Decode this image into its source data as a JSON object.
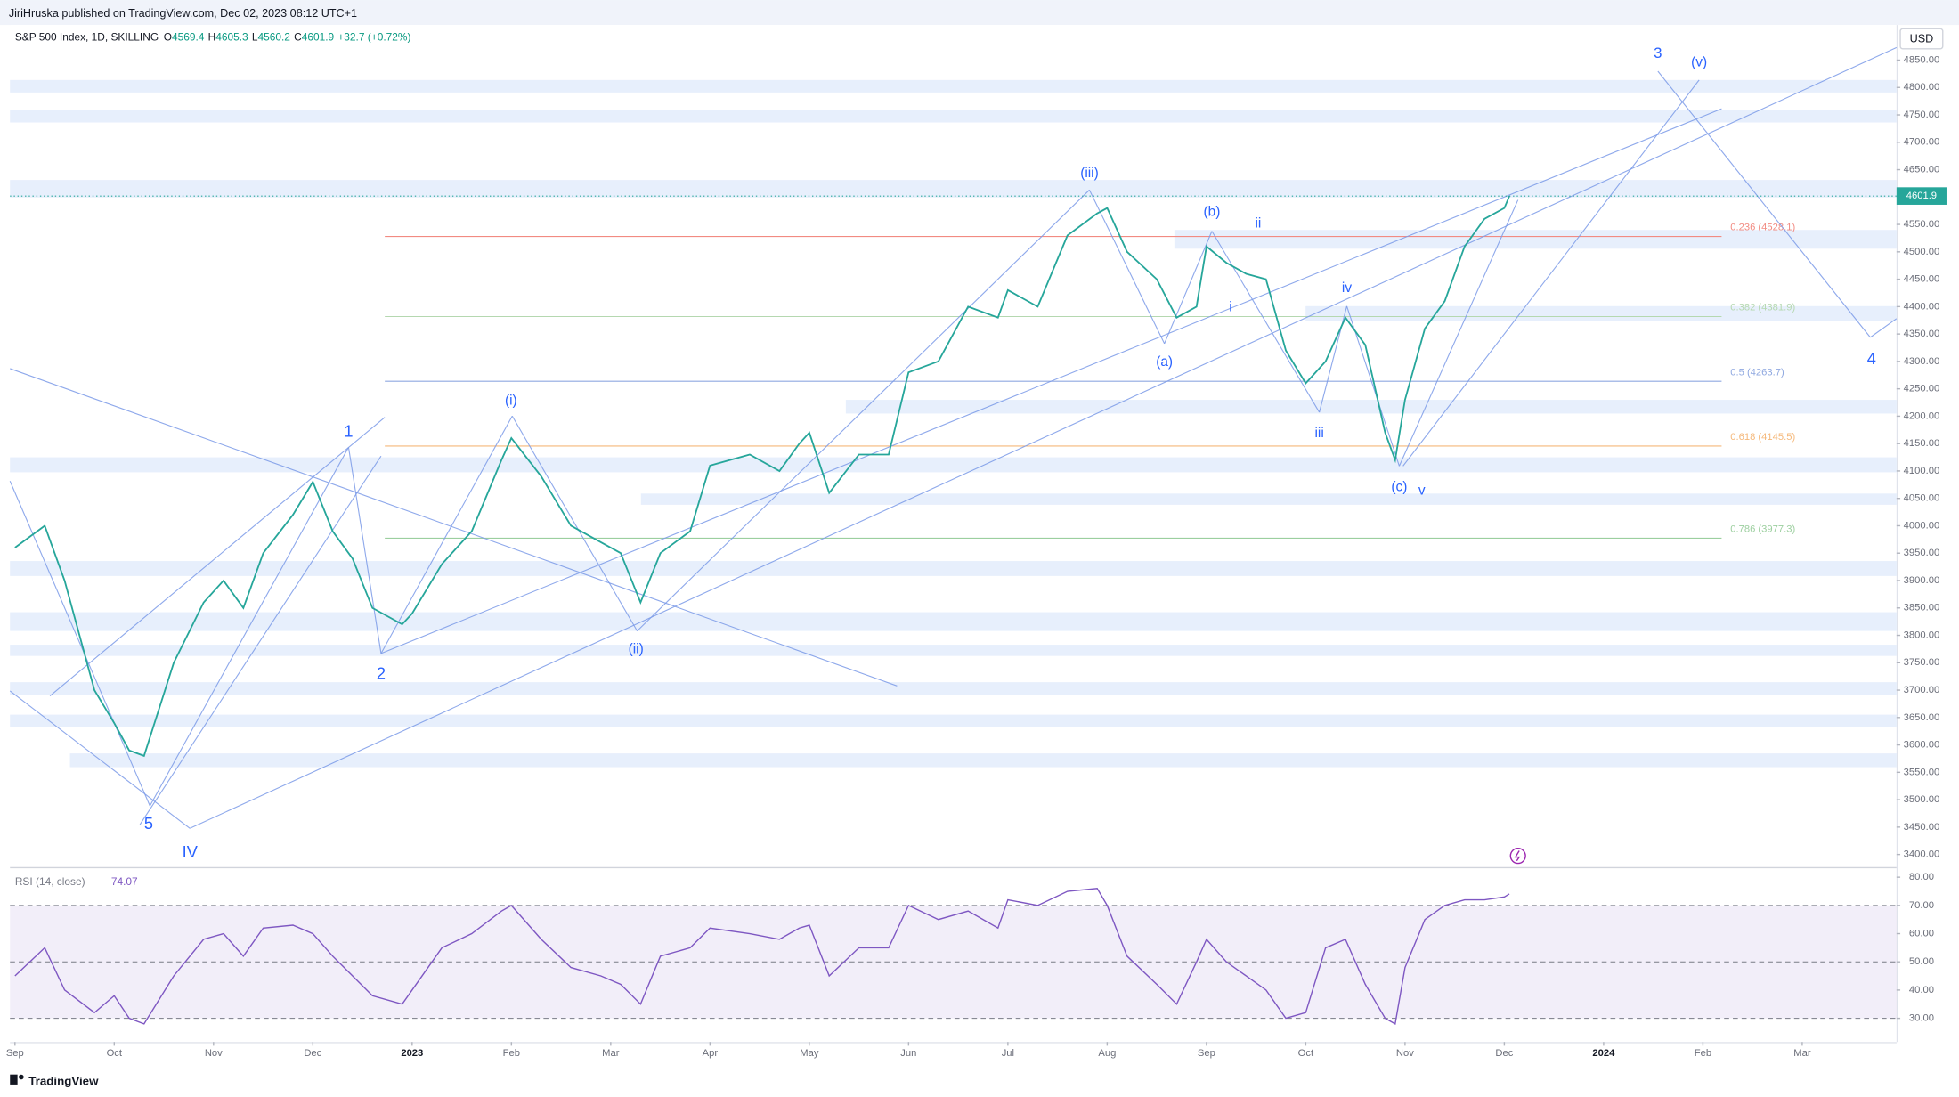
{
  "header": "JiriHruska published on TradingView.com, Dec 02, 2023 08:12 UTC+1",
  "footer": "TradingView",
  "chart_data": [
    {
      "type": "line",
      "title": "S&P 500 Index, 1D, SKILLING",
      "ohlc": [
        {
          "label": "O",
          "value": 4569.4
        },
        {
          "label": "H",
          "value": 4605.3
        },
        {
          "label": "L",
          "value": 4560.2
        },
        {
          "label": "C",
          "value": 4601.9
        }
      ],
      "change": "+32.7 (+0.72%)",
      "currency": "USD",
      "color": "#26a69a",
      "x": [
        0,
        0.3,
        0.5,
        0.8,
        1.0,
        1.15,
        1.3,
        1.6,
        1.9,
        2.1,
        2.3,
        2.5,
        2.8,
        3.0,
        3.2,
        3.4,
        3.6,
        3.9,
        4.0,
        4.3,
        4.6,
        4.9,
        5.0,
        5.3,
        5.6,
        5.9,
        6.1,
        6.3,
        6.5,
        6.8,
        7.0,
        7.4,
        7.7,
        7.9,
        8.0,
        8.2,
        8.5,
        8.8,
        9.0,
        9.3,
        9.6,
        9.9,
        10.0,
        10.3,
        10.6,
        10.9,
        11.0,
        11.2,
        11.5,
        11.7,
        11.9,
        12.0,
        12.2,
        12.4,
        12.6,
        12.8,
        13.0,
        13.2,
        13.4,
        13.6,
        13.8,
        13.9,
        14.0,
        14.2,
        14.4,
        14.6,
        14.8,
        15.0,
        15.05
      ],
      "values": [
        3960,
        4000,
        3900,
        3700,
        3640,
        3590,
        3580,
        3750,
        3860,
        3900,
        3850,
        3950,
        4020,
        4080,
        3990,
        3940,
        3850,
        3820,
        3840,
        3930,
        3990,
        4120,
        4160,
        4090,
        4000,
        3970,
        3950,
        3860,
        3950,
        3990,
        4110,
        4130,
        4100,
        4150,
        4170,
        4060,
        4130,
        4130,
        4280,
        4300,
        4400,
        4380,
        4430,
        4400,
        4530,
        4570,
        4580,
        4500,
        4450,
        4380,
        4400,
        4510,
        4480,
        4460,
        4450,
        4320,
        4260,
        4300,
        4380,
        4330,
        4170,
        4120,
        4230,
        4360,
        4410,
        4510,
        4560,
        4580,
        4601.9
      ],
      "xlim": [
        -0.05,
        18.95
      ],
      "xticks": [
        {
          "value": 0,
          "label": "Sep"
        },
        {
          "value": 1,
          "label": "Oct"
        },
        {
          "value": 2,
          "label": "Nov"
        },
        {
          "value": 3,
          "label": "Dec"
        },
        {
          "value": 4,
          "label": "2023"
        },
        {
          "value": 5,
          "label": "Feb"
        },
        {
          "value": 6,
          "label": "Mar"
        },
        {
          "value": 7,
          "label": "Apr"
        },
        {
          "value": 8,
          "label": "May"
        },
        {
          "value": 9,
          "label": "Jun"
        },
        {
          "value": 10,
          "label": "Jul"
        },
        {
          "value": 11,
          "label": "Aug"
        },
        {
          "value": 12,
          "label": "Sep"
        },
        {
          "value": 13,
          "label": "Oct"
        },
        {
          "value": 14,
          "label": "Nov"
        },
        {
          "value": 15,
          "label": "Dec"
        },
        {
          "value": 16,
          "label": "2024"
        },
        {
          "value": 17,
          "label": "Feb"
        },
        {
          "value": 18,
          "label": "Mar"
        }
      ],
      "ylim": [
        3377,
        4914
      ],
      "yticks": [
        {
          "value": 3400,
          "label": "3400.00"
        },
        {
          "value": 3450,
          "label": "3450.00"
        },
        {
          "value": 3500,
          "label": "3500.00"
        },
        {
          "value": 3550,
          "label": "3550.00"
        },
        {
          "value": 3600,
          "label": "3600.00"
        },
        {
          "value": 3650,
          "label": "3650.00"
        },
        {
          "value": 3700,
          "label": "3700.00"
        },
        {
          "value": 3750,
          "label": "3750.00"
        },
        {
          "value": 3800,
          "label": "3800.00"
        },
        {
          "value": 3850,
          "label": "3850.00"
        },
        {
          "value": 3900,
          "label": "3900.00"
        },
        {
          "value": 3950,
          "label": "3950.00"
        },
        {
          "value": 4000,
          "label": "4000.00"
        },
        {
          "value": 4050,
          "label": "4050.00"
        },
        {
          "value": 4100,
          "label": "4100.00"
        },
        {
          "value": 4150,
          "label": "4150.00"
        },
        {
          "value": 4200,
          "label": "4200.00"
        },
        {
          "value": 4250,
          "label": "4250.00"
        },
        {
          "value": 4300,
          "label": "4300.00"
        },
        {
          "value": 4350,
          "label": "4350.00"
        },
        {
          "value": 4400,
          "label": "4400.00"
        },
        {
          "value": 4450,
          "label": "4450.00"
        },
        {
          "value": 4500,
          "label": "4500.00"
        },
        {
          "value": 4550,
          "label": "4550.00"
        },
        {
          "value": 4600,
          "label": "4600.00"
        },
        {
          "value": 4650,
          "label": "4650.00"
        },
        {
          "value": 4700,
          "label": "4700.00"
        },
        {
          "value": 4750,
          "label": "4750.00"
        },
        {
          "value": 4800,
          "label": "4800.00"
        },
        {
          "value": 4850,
          "label": "4850.00"
        }
      ],
      "fib": [
        {
          "value": 4528.1,
          "label": "0.236 (4528.1)",
          "color": "#f28b82"
        },
        {
          "value": 4381.9,
          "label": "0.382 (4381.9)",
          "color": "#b5d8b0"
        },
        {
          "value": 4263.7,
          "label": "0.5 (4263.7)",
          "color": "#8fa8e0"
        },
        {
          "value": 4145.5,
          "label": "0.618 (4145.5)",
          "color": "#f5b87a"
        },
        {
          "value": 3977.3,
          "label": "0.786 (3977.3)",
          "color": "#9ccf9f"
        }
      ],
      "annotations": [
        "3",
        "(v)",
        "(iii)",
        "(b)",
        "ii",
        "i",
        "iv",
        "(a)",
        "iii",
        "(c)",
        "v",
        "4",
        "1",
        "(i)",
        "2",
        "(ii)",
        "5",
        "IV"
      ]
    },
    {
      "type": "line",
      "title": "RSI (14, close)",
      "color": "#7e57c2",
      "x": [
        0,
        0.3,
        0.5,
        0.8,
        1.0,
        1.15,
        1.3,
        1.6,
        1.9,
        2.1,
        2.3,
        2.5,
        2.8,
        3.0,
        3.2,
        3.4,
        3.6,
        3.9,
        4.0,
        4.3,
        4.6,
        4.9,
        5.0,
        5.3,
        5.6,
        5.9,
        6.1,
        6.3,
        6.5,
        6.8,
        7.0,
        7.4,
        7.7,
        7.9,
        8.0,
        8.2,
        8.5,
        8.8,
        9.0,
        9.3,
        9.6,
        9.9,
        10.0,
        10.3,
        10.6,
        10.9,
        11.0,
        11.2,
        11.5,
        11.7,
        11.9,
        12.0,
        12.2,
        12.4,
        12.6,
        12.8,
        13.0,
        13.2,
        13.4,
        13.6,
        13.8,
        13.9,
        14.0,
        14.2,
        14.4,
        14.6,
        14.8,
        15.0,
        15.05
      ],
      "values": [
        45,
        55,
        40,
        32,
        38,
        30,
        28,
        45,
        58,
        60,
        52,
        62,
        63,
        60,
        52,
        45,
        38,
        35,
        40,
        55,
        60,
        68,
        70,
        58,
        48,
        45,
        42,
        35,
        52,
        55,
        62,
        60,
        58,
        62,
        63,
        45,
        55,
        55,
        70,
        65,
        68,
        62,
        72,
        70,
        75,
        76,
        70,
        52,
        42,
        35,
        50,
        58,
        50,
        45,
        40,
        30,
        32,
        55,
        58,
        42,
        30,
        28,
        48,
        65,
        70,
        72,
        72,
        73,
        74.07
      ],
      "xlim": [
        -0.05,
        18.95
      ],
      "ylim": [
        21.6,
        82.7
      ],
      "band": [
        30,
        70
      ],
      "yticks": [
        {
          "value": 30,
          "label": "30.00"
        },
        {
          "value": 40,
          "label": "40.00"
        },
        {
          "value": 50,
          "label": "50.00"
        },
        {
          "value": 60,
          "label": "60.00"
        },
        {
          "value": 70,
          "label": "70.00"
        },
        {
          "value": 80,
          "label": "80.00"
        }
      ]
    }
  ]
}
